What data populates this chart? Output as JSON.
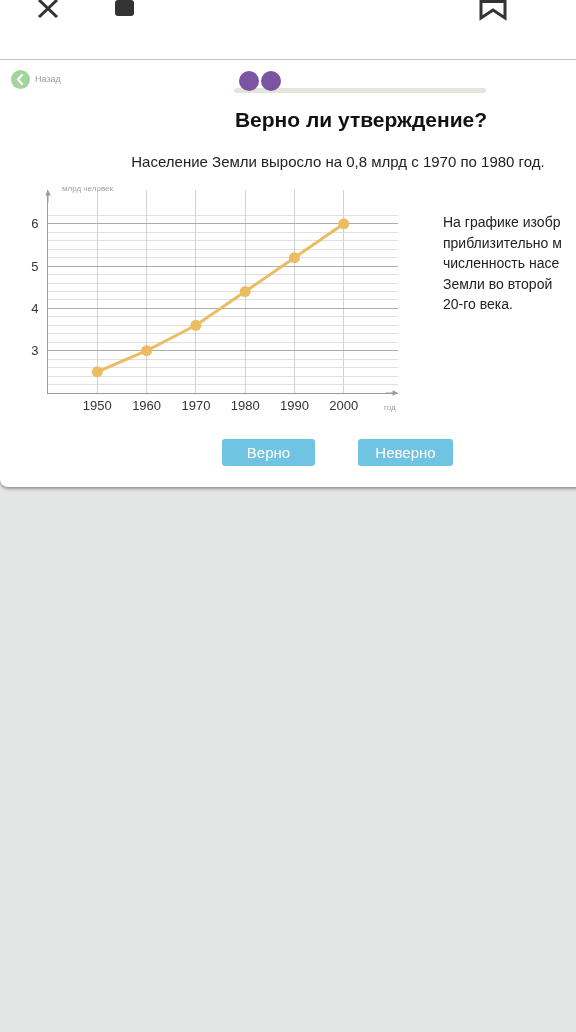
{
  "chart_data": {
    "type": "line",
    "title": "Верно ли утверждение?",
    "subtitle": "Население Земли выросло на 0,8 млрд с 1970 по 1980 год.",
    "xlabel": "год",
    "ylabel": "млрд человек",
    "x": [
      1950,
      1960,
      1970,
      1980,
      1990,
      2000
    ],
    "series": [
      {
        "color": "#ebbc62",
        "values": [
          2.5,
          3.0,
          3.6,
          4.4,
          5.2,
          6.0
        ]
      }
    ],
    "xlim": [
      1940,
      2011
    ],
    "ylim": [
      2,
      6.8
    ],
    "xticks": [
      1950,
      1960,
      1970,
      1980,
      1990,
      2000
    ],
    "yticks": [
      {
        "value": 2.2,
        "label": null
      },
      {
        "value": 2.4,
        "label": null
      },
      {
        "value": 2.6,
        "label": null
      },
      {
        "value": 2.8,
        "label": null
      },
      3,
      {
        "value": 3.2,
        "label": null
      },
      {
        "value": 3.4,
        "label": null
      },
      {
        "value": 3.6,
        "label": null
      },
      {
        "value": 3.8,
        "label": null
      },
      4,
      {
        "value": 4.2,
        "label": null
      },
      {
        "value": 4.4,
        "label": null
      },
      {
        "value": 4.6,
        "label": null
      },
      {
        "value": 4.8,
        "label": null
      },
      5,
      {
        "value": 5.2,
        "label": null
      },
      {
        "value": 5.4,
        "label": null
      },
      {
        "value": 5.6,
        "label": null
      },
      {
        "value": 5.8,
        "label": null
      },
      6,
      {
        "value": 6.2,
        "label": null
      }
    ],
    "grid": true,
    "marker": "circle",
    "line_style": "solid",
    "annotations": [
      "Назад",
      "На графике изобр\nприблизительно м\nчисленность насе\nЗемли во второй\n20-го века.",
      "Верно",
      "Неверно"
    ]
  }
}
